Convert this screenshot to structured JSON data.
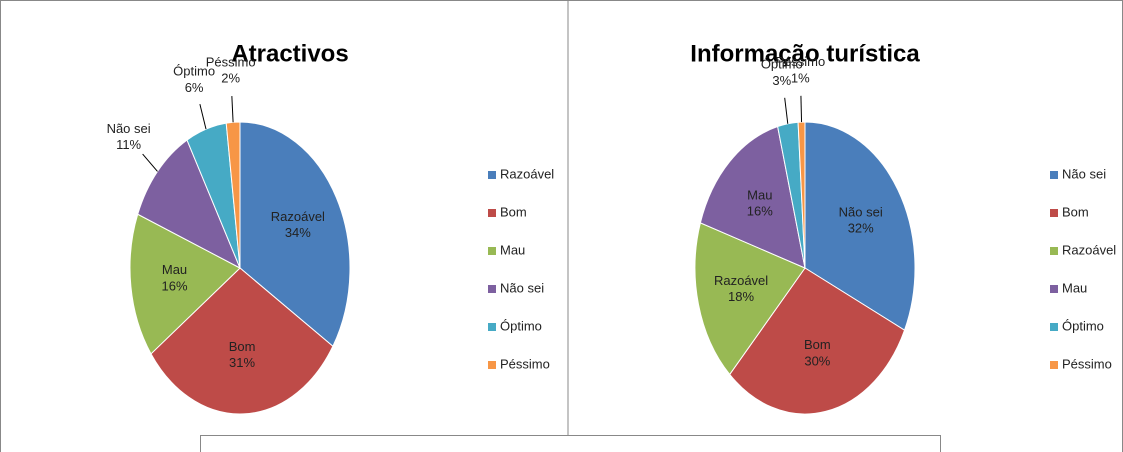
{
  "chart_data": [
    {
      "type": "pie",
      "title": "Atractivos",
      "categories": [
        "Razoável",
        "Bom",
        "Mau",
        "Não sei",
        "Óptimo",
        "Péssimo"
      ],
      "values": [
        34,
        31,
        16,
        11,
        6,
        2
      ],
      "value_labels": [
        "34%",
        "31%",
        "16%",
        "11%",
        "6%",
        "2%"
      ],
      "colors": [
        "#4a7ebb",
        "#be4b48",
        "#98b954",
        "#7d60a0",
        "#46aac5",
        "#f79646"
      ],
      "legend": "right"
    },
    {
      "type": "pie",
      "title": "Informação turística",
      "categories": [
        "Não sei",
        "Bom",
        "Razoável",
        "Mau",
        "Óptimo",
        "Péssimo"
      ],
      "values": [
        32,
        30,
        18,
        16,
        3,
        1
      ],
      "value_labels": [
        "32%",
        "30%",
        "18%",
        "16%",
        "3%",
        "1%"
      ],
      "colors": [
        "#4a7ebb",
        "#be4b48",
        "#98b954",
        "#7d60a0",
        "#46aac5",
        "#f79646"
      ],
      "legend": "right"
    }
  ]
}
